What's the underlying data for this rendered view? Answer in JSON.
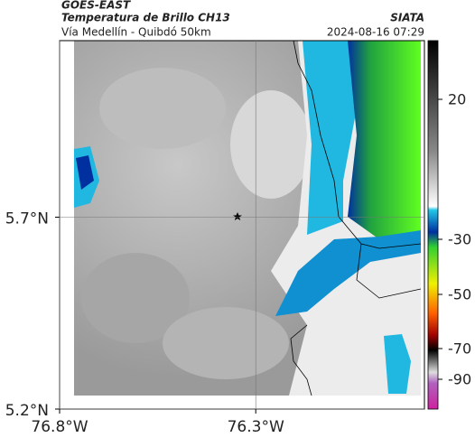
{
  "header": {
    "product": "GOES-EAST",
    "title": "Temperatura de Brillo CH13",
    "subtitle": "Vía Medellín - Quibdó 50km",
    "source": "SIATA",
    "datetime": "2024-08-16 07:29"
  },
  "map": {
    "lonlim": [
      -76.8,
      -75.87
    ],
    "latlim": [
      5.2,
      6.16
    ],
    "lat_ticks": [
      {
        "value": 5.7,
        "label": "5.7°N"
      },
      {
        "value": 5.2,
        "label": "5.2°N"
      }
    ],
    "lon_ticks": [
      {
        "value": -76.8,
        "label": "76.8°W"
      },
      {
        "value": -76.3,
        "label": "76.3°W"
      }
    ],
    "colorbar": {
      "ticks": [
        20,
        -30,
        -50,
        -70,
        -90
      ]
    }
  }
}
